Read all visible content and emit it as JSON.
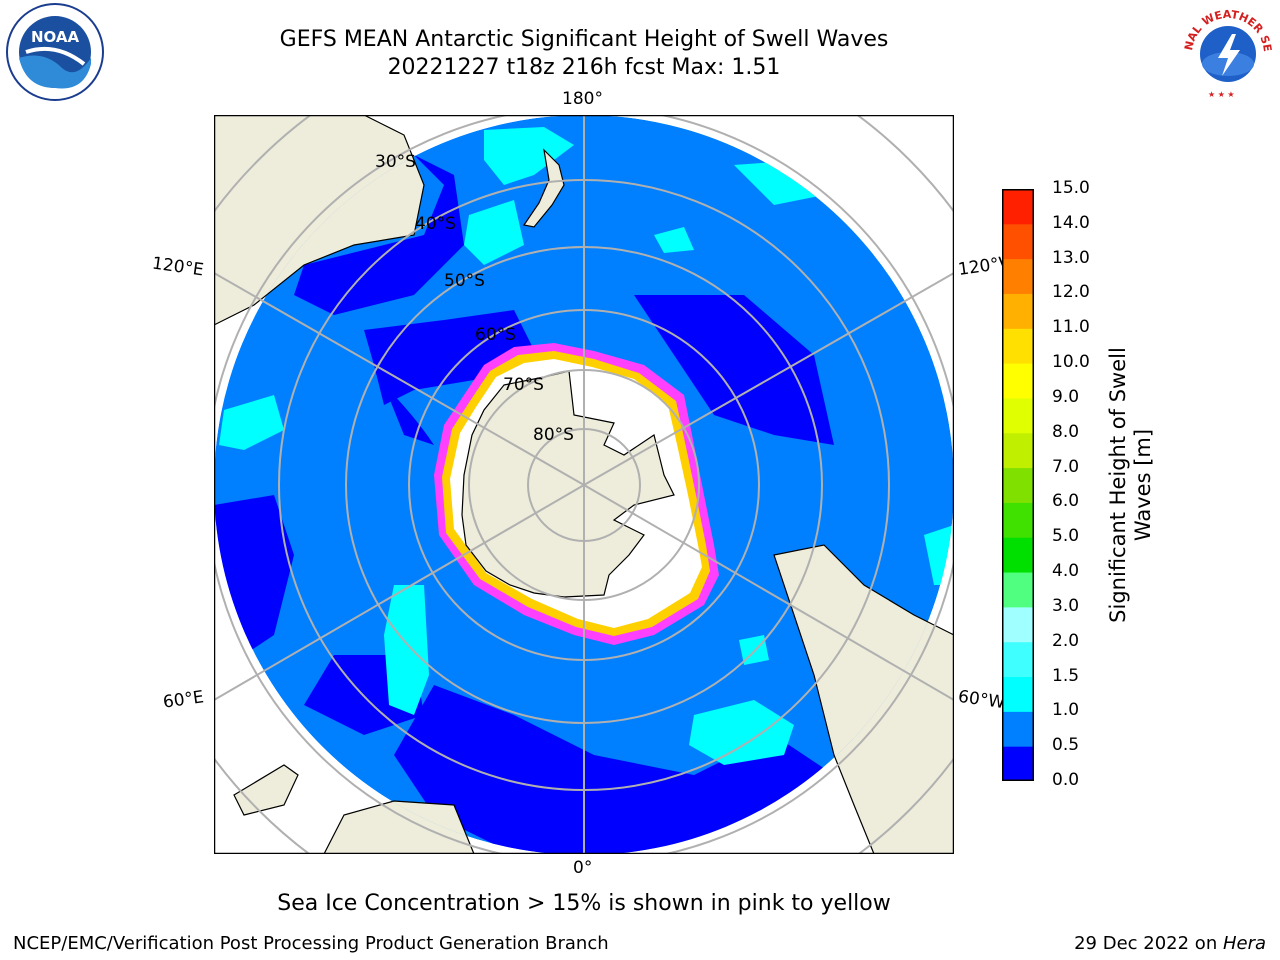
{
  "header": {
    "title_line1": "GEFS MEAN Antarctic Significant Height of Swell Waves",
    "title_line2": "20221227 t18z 216h fcst   Max: 1.51"
  },
  "logos": {
    "noaa_text": "NOAA",
    "nws_text": "NATIONAL WEATHER SERVICE"
  },
  "map": {
    "projection": "south-polar-stereographic",
    "longitude_labels": [
      "180°",
      "120°E",
      "120°W",
      "60°E",
      "60°W",
      "0°"
    ],
    "latitude_labels": [
      "30°S",
      "40°S",
      "50°S",
      "60°S",
      "70°S",
      "80°S"
    ],
    "colors": {
      "land": "#eeecda",
      "ocean_main": "#0080ff",
      "ocean_low": "#0000ff",
      "swell_cyan": "#00ffff",
      "ice": "#ffffff",
      "ice_edge_pink": "#ff40ff",
      "ice_edge_yellow": "#ffd000",
      "grid": "#b0b0b0"
    }
  },
  "colorbar": {
    "title_line1": "Significant Height of Swell",
    "title_line2": "Waves [m]",
    "ticks": [
      "0.0",
      "0.5",
      "1.0",
      "1.5",
      "2.0",
      "3.0",
      "4.0",
      "5.0",
      "6.0",
      "7.0",
      "8.0",
      "9.0",
      "10.0",
      "11.0",
      "12.0",
      "13.0",
      "14.0",
      "15.0"
    ],
    "colors": [
      "#0000ff",
      "#0080ff",
      "#00ffff",
      "#40ffff",
      "#a0ffff",
      "#50ff80",
      "#00e000",
      "#40e000",
      "#80e000",
      "#c0f000",
      "#e0ff00",
      "#ffff00",
      "#ffe000",
      "#ffb000",
      "#ff8000",
      "#ff5000",
      "#ff2000",
      "#ff0000"
    ]
  },
  "footer": {
    "note": "Sea Ice Concentration > 15% is shown in pink to yellow",
    "credit": "NCEP/EMC/Verification Post Processing Product Generation Branch",
    "date_prefix": "29 Dec 2022 on ",
    "host": "Hera"
  }
}
